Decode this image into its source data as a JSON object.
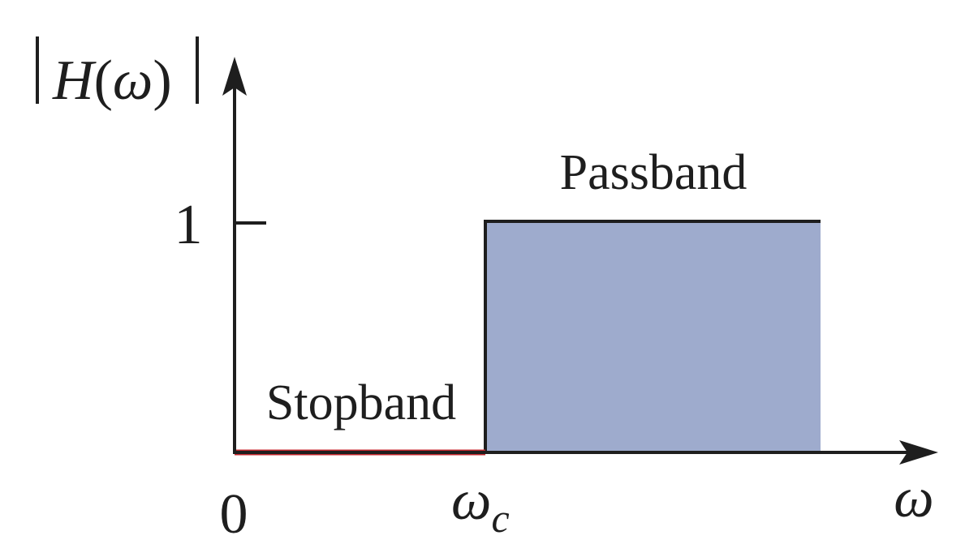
{
  "y_axis": {
    "label_name": "H",
    "label_open": "(",
    "label_var": "ω",
    "label_close": ")"
  },
  "x_axis": {
    "label": "ω"
  },
  "ticks": {
    "origin": "0",
    "one": "1",
    "cutoff_main": "ω",
    "cutoff_sub": "c"
  },
  "regions": {
    "passband": "Passband",
    "stopband": "Stopband"
  },
  "colors": {
    "passband_fill": "#9eabcd",
    "stopband_line": "#c0272d",
    "axis": "#1e1e1e"
  }
}
